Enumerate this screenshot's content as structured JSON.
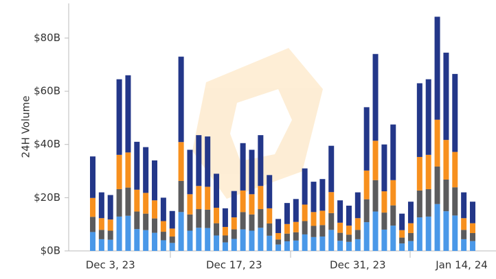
{
  "chart_data": {
    "type": "bar",
    "stacked": true,
    "y_label": "24H Volume",
    "categories": [
      null,
      null,
      "Dec 3, 23",
      null,
      null,
      null,
      null,
      null,
      null,
      null,
      null,
      null,
      null,
      null,
      null,
      null,
      "Dec 17, 23",
      null,
      null,
      null,
      null,
      null,
      null,
      null,
      null,
      null,
      null,
      null,
      null,
      null,
      "Dec 31, 23",
      null,
      null,
      null,
      null,
      null,
      null,
      null,
      null,
      null,
      null,
      null,
      null,
      "Jan 14, 24"
    ],
    "series": [
      {
        "color": "#4a98e8",
        "values": [
          7.1,
          4.4,
          4.2,
          12.9,
          13.2,
          8.2,
          7.8,
          6.8,
          4,
          3,
          14.6,
          7.6,
          8.7,
          8.6,
          5.8,
          3.2,
          4.5,
          8.1,
          7.6,
          8.7,
          5.7,
          2.4,
          3.6,
          3.9,
          6.2,
          5.2,
          5.4,
          7.9,
          3.8,
          3.4,
          4.4,
          10.8,
          14.8,
          8,
          9.5,
          2.8,
          3.7,
          12.6,
          12.9,
          17.6,
          14.9,
          13.3,
          4.4,
          3.7
        ]
      },
      {
        "color": "#5b5b5d",
        "values": [
          5.7,
          3.5,
          3.4,
          10.3,
          10.6,
          6.6,
          6.2,
          5.4,
          3.2,
          2.4,
          11.7,
          6.1,
          7,
          6.9,
          4.6,
          2.6,
          3.6,
          6.5,
          6.1,
          7,
          4.6,
          1.9,
          2.9,
          3.1,
          5,
          4.2,
          4.3,
          6.3,
          3,
          2.7,
          3.5,
          8.6,
          11.8,
          6.4,
          7.6,
          2.2,
          3,
          10.1,
          10.3,
          14.1,
          11.9,
          10.6,
          3.5,
          3
        ]
      },
      {
        "color": "#f7901e",
        "values": [
          7.1,
          4.4,
          4.2,
          12.9,
          13.2,
          8.2,
          7.8,
          6.8,
          4,
          3,
          14.6,
          7.6,
          8.7,
          8.6,
          5.8,
          3.2,
          4.5,
          8.1,
          7.6,
          8.7,
          5.7,
          2.4,
          3.6,
          3.9,
          6.2,
          5.2,
          5.4,
          7.9,
          3.8,
          3.4,
          4.4,
          10.8,
          14.8,
          8,
          9.5,
          2.8,
          3.7,
          12.6,
          12.9,
          17.6,
          14.9,
          13.3,
          4.4,
          3.7
        ]
      },
      {
        "color": "#233789",
        "values": [
          15.6,
          9.7,
          9.2,
          28.4,
          29,
          18,
          17.2,
          15,
          8.8,
          6.6,
          32.1,
          16.7,
          19.1,
          18.9,
          12.8,
          7,
          9.9,
          17.8,
          16.7,
          19.1,
          12.5,
          5.3,
          7.9,
          8.6,
          13.6,
          11.4,
          11.9,
          17.4,
          8.4,
          7.5,
          9.7,
          23.8,
          32.6,
          17.6,
          20.9,
          6.2,
          8.1,
          27.7,
          28.4,
          38.7,
          32.8,
          29.3,
          9.7,
          8.1
        ]
      }
    ],
    "ylim": [
      0,
      93
    ],
    "yticks": [
      {
        "value": 0,
        "label": "$0B"
      },
      {
        "value": 20,
        "label": "$20B"
      },
      {
        "value": 40,
        "label": "$40B"
      },
      {
        "value": 60,
        "label": "$60B"
      },
      {
        "value": 80,
        "label": "$80B"
      }
    ],
    "grid": false
  }
}
